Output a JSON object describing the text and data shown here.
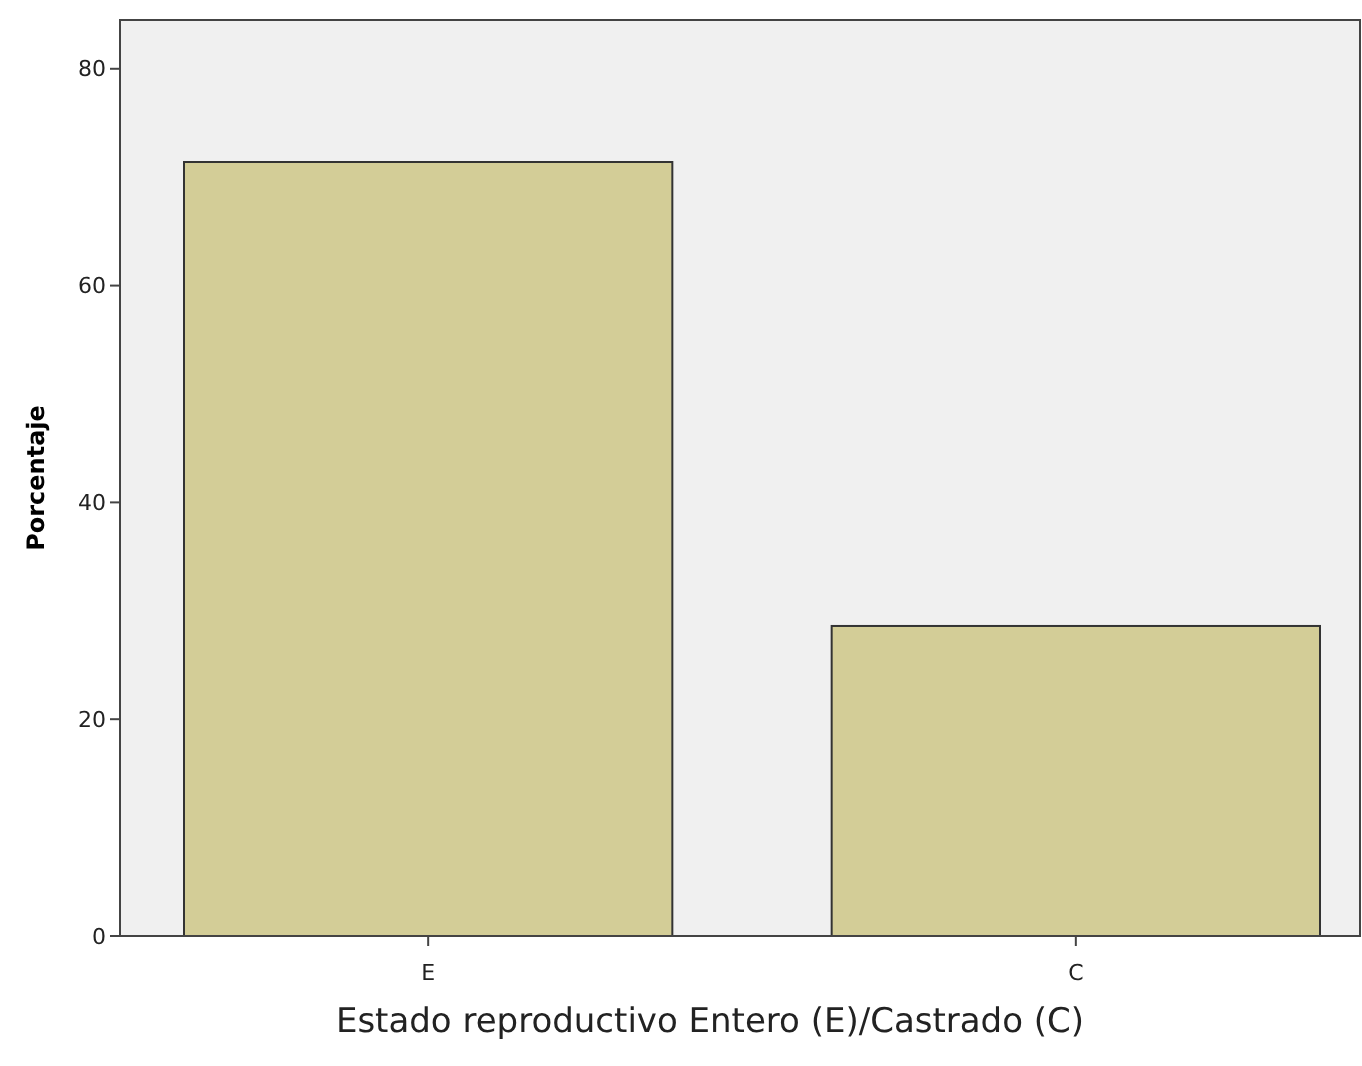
{
  "chart_data": {
    "type": "bar",
    "xlabel": "Estado reproductivo Entero (E)/Castrado (C)",
    "ylabel": "Porcentaje",
    "categories": [
      "E",
      "C"
    ],
    "values": [
      71.4,
      28.6
    ],
    "color": "#d3cd97",
    "ylim": [
      0,
      84.5
    ],
    "yticks": [
      0,
      20,
      40,
      60,
      80
    ],
    "grid": false
  }
}
